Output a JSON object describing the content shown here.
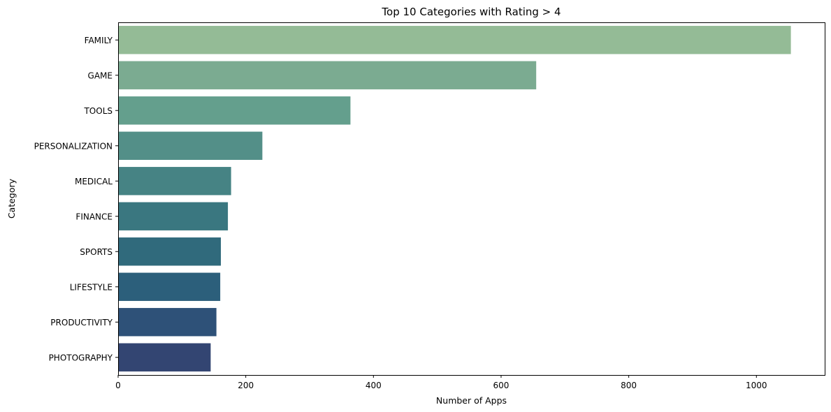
{
  "chart_data": {
    "type": "bar",
    "orientation": "horizontal",
    "title": "Top 10 Categories with Rating > 4",
    "xlabel": "Number of Apps",
    "ylabel": "Category",
    "categories": [
      "FAMILY",
      "GAME",
      "TOOLS",
      "PERSONALIZATION",
      "MEDICAL",
      "FINANCE",
      "SPORTS",
      "LIFESTYLE",
      "PRODUCTIVITY",
      "PHOTOGRAPHY"
    ],
    "values": [
      1054,
      655,
      364,
      226,
      177,
      172,
      161,
      160,
      154,
      145
    ],
    "colors": [
      "#94bb96",
      "#7bab91",
      "#649f8d",
      "#538f88",
      "#468384",
      "#3a7780",
      "#306a7c",
      "#2c5f7b",
      "#2e5178",
      "#334572"
    ],
    "xlim": [
      0,
      1107
    ],
    "xticks": [
      0,
      200,
      400,
      600,
      800,
      1000
    ],
    "xtick_labels": [
      "0",
      "200",
      "400",
      "600",
      "800",
      "1000"
    ],
    "grid": false,
    "legend": "none"
  }
}
